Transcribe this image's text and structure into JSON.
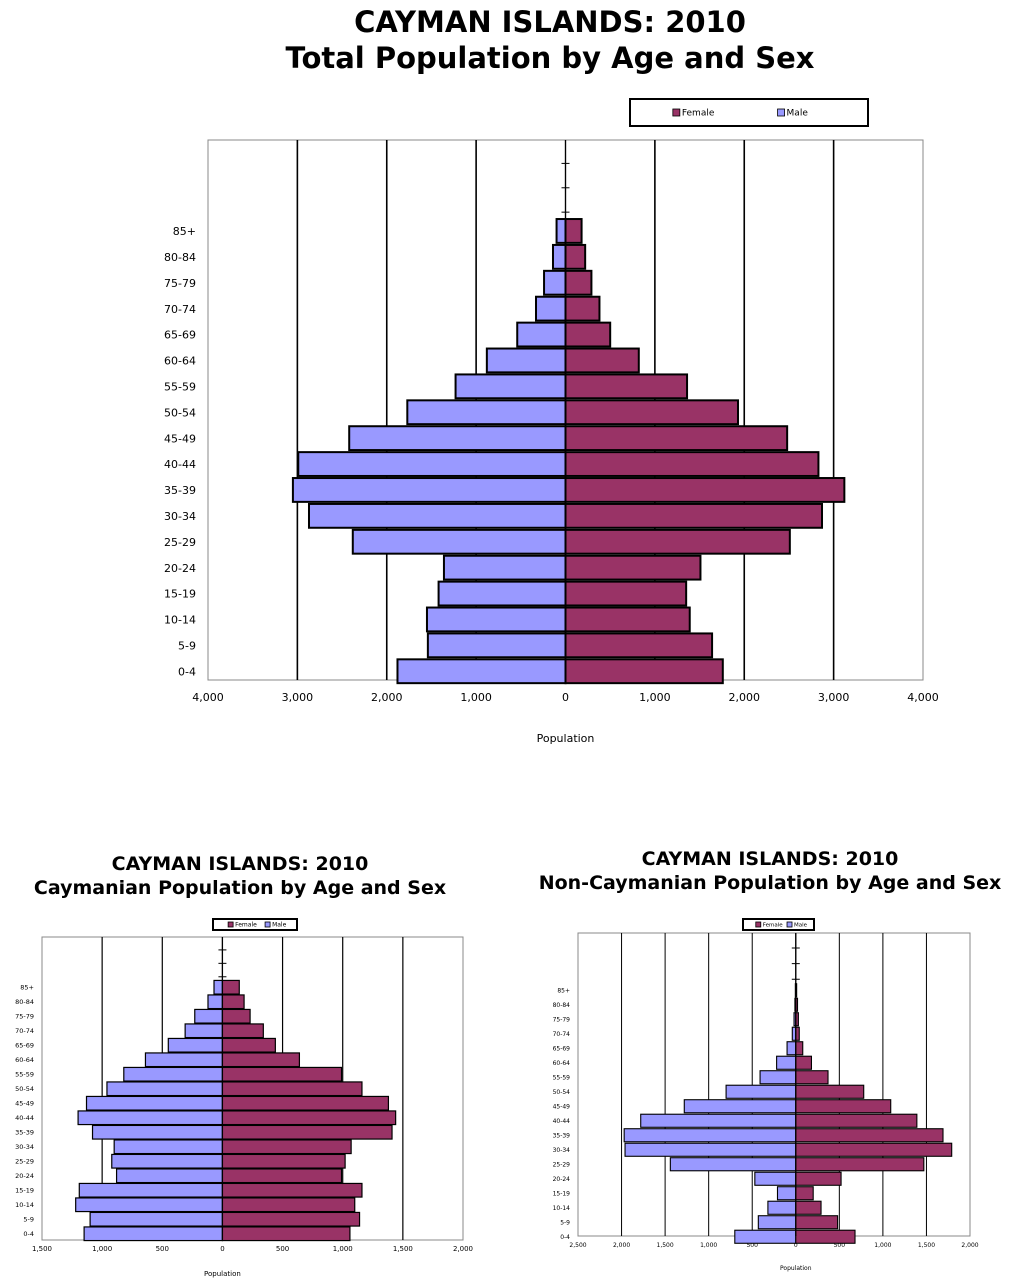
{
  "page": {
    "title_main_line1": "CAYMAN ISLANDS:  2010",
    "title_main_line2": "Total Population by Age and Sex",
    "title_left_line1": "CAYMAN ISLANDS:  2010",
    "title_left_line2": "Caymanian Population by Age and Sex",
    "title_right_line1": "CAYMAN ISLANDS:  2010",
    "title_right_line2": "Non-Caymanian Population by Age and Sex"
  },
  "colors": {
    "female": "#993366",
    "male": "#9999ff",
    "outline": "#000000"
  },
  "chart_data": [
    {
      "id": "total",
      "type": "bar",
      "orientation": "horizontal-pyramid",
      "title": "CAYMAN ISLANDS:  2010 Total Population by Age and Sex",
      "xlabel": "Population",
      "xlim": [
        -4000,
        4000
      ],
      "ticks": [
        "4,000",
        "3,000",
        "2,000",
        "1,000",
        "0",
        "1,000",
        "2,000",
        "3,000",
        "4,000"
      ],
      "legend": {
        "placement": "top-right",
        "entries": [
          "Female",
          "Male"
        ]
      },
      "categories": [
        "0-4",
        "5-9",
        "10-14",
        "15-19",
        "20-24",
        "25-29",
        "30-34",
        "35-39",
        "40-44",
        "45-49",
        "50-54",
        "55-59",
        "60-64",
        "65-69",
        "70-74",
        "75-79",
        "80-84",
        "85+"
      ],
      "series": [
        {
          "name": "Male",
          "values": [
            1880,
            1540,
            1550,
            1420,
            1360,
            2380,
            2870,
            3050,
            2990,
            2420,
            1770,
            1230,
            880,
            540,
            330,
            240,
            140,
            100
          ]
        },
        {
          "name": "Female",
          "values": [
            1760,
            1640,
            1390,
            1350,
            1510,
            2510,
            2870,
            3120,
            2830,
            2480,
            1930,
            1360,
            820,
            500,
            380,
            290,
            220,
            180
          ]
        }
      ]
    },
    {
      "id": "caymanian",
      "type": "bar",
      "orientation": "horizontal-pyramid",
      "title": "CAYMAN ISLANDS:  2010 Caymanian Population by Age and Sex",
      "xlabel": "Population",
      "xlim": [
        -1500,
        2000
      ],
      "ticks": [
        "1,500",
        "1,000",
        "500",
        "0",
        "500",
        "1,000",
        "1,500",
        "2,000"
      ],
      "legend": {
        "placement": "top-center",
        "entries": [
          "Female",
          "Male"
        ]
      },
      "categories": [
        "0-4",
        "5-9",
        "10-14",
        "15-19",
        "20-24",
        "25-29",
        "30-34",
        "35-39",
        "40-44",
        "45-49",
        "50-54",
        "55-59",
        "60-64",
        "65-69",
        "70-74",
        "75-79",
        "80-84",
        "85+"
      ],
      "series": [
        {
          "name": "Male",
          "values": [
            1150,
            1100,
            1220,
            1190,
            880,
            920,
            900,
            1080,
            1200,
            1130,
            960,
            820,
            640,
            450,
            310,
            230,
            120,
            70
          ]
        },
        {
          "name": "Female",
          "values": [
            1060,
            1140,
            1100,
            1160,
            990,
            1020,
            1070,
            1410,
            1440,
            1380,
            1160,
            990,
            640,
            440,
            340,
            230,
            180,
            140
          ]
        }
      ]
    },
    {
      "id": "noncaymanian",
      "type": "bar",
      "orientation": "horizontal-pyramid",
      "title": "CAYMAN ISLANDS:  2010 Non-Caymanian Population by Age and Sex",
      "xlabel": "Population",
      "xlim": [
        -2500,
        2000
      ],
      "ticks": [
        "2,500",
        "2,000",
        "1,500",
        "1,000",
        "500",
        "0",
        "500",
        "1,000",
        "1,500",
        "2,000"
      ],
      "legend": {
        "placement": "top-center",
        "entries": [
          "Female",
          "Male"
        ]
      },
      "categories": [
        "0-4",
        "5-9",
        "10-14",
        "15-19",
        "20-24",
        "25-29",
        "30-34",
        "35-39",
        "40-44",
        "45-49",
        "50-54",
        "55-59",
        "60-64",
        "65-69",
        "70-74",
        "75-79",
        "80-84",
        "85+"
      ],
      "series": [
        {
          "name": "Male",
          "values": [
            700,
            430,
            320,
            210,
            470,
            1440,
            1960,
            1970,
            1780,
            1280,
            800,
            410,
            220,
            100,
            40,
            20,
            10,
            5
          ]
        },
        {
          "name": "Female",
          "values": [
            680,
            480,
            290,
            200,
            520,
            1470,
            1790,
            1690,
            1390,
            1090,
            780,
            370,
            180,
            80,
            40,
            30,
            20,
            10
          ]
        }
      ]
    }
  ]
}
